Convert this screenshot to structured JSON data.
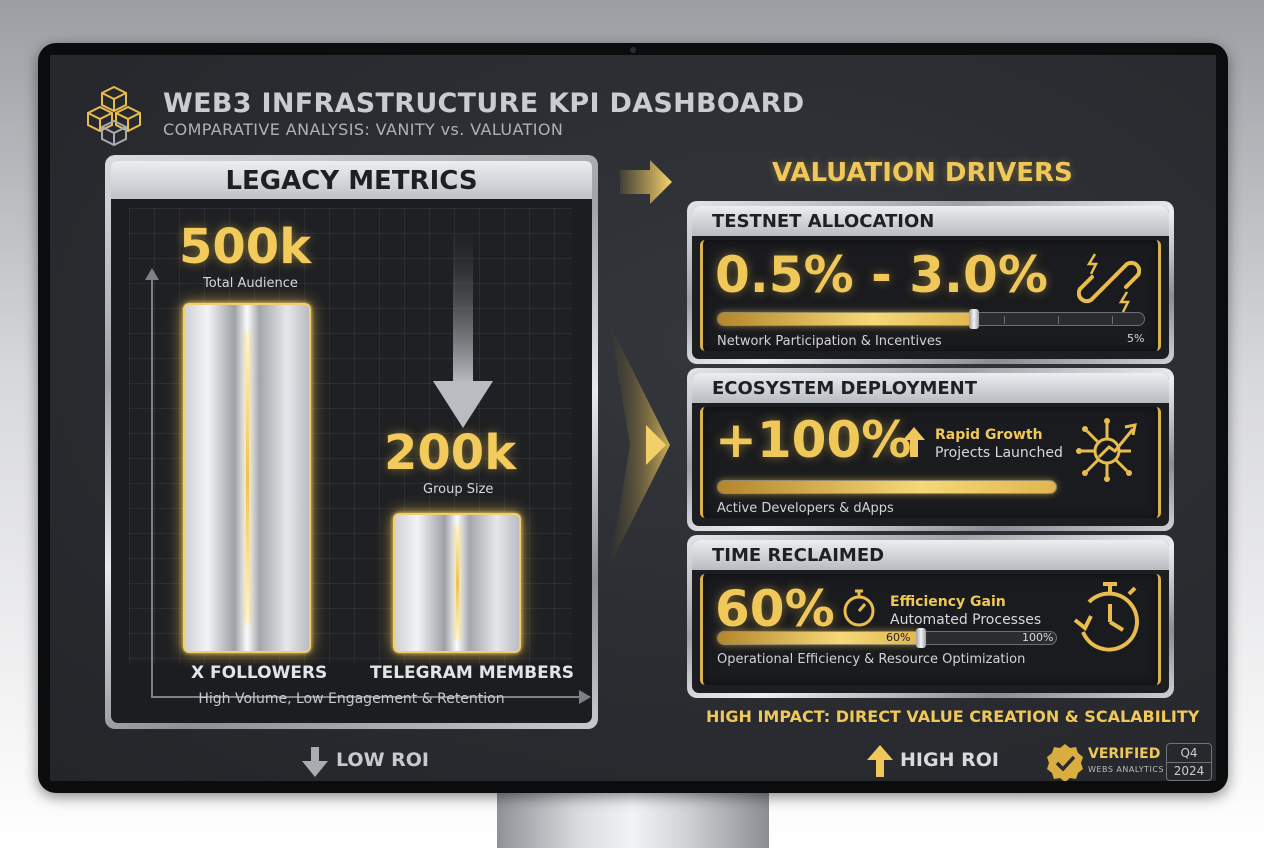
{
  "header": {
    "title": "WEB3 INFRASTRUCTURE KPI DASHBOARD",
    "subtitle": "COMPARATIVE ANALYSIS: VANITY vs. VALUATION",
    "logo_icon": "cubes-network-icon"
  },
  "legacy": {
    "title": "LEGACY METRICS",
    "bars": [
      {
        "value_label": "500k",
        "caption": "Total Audience",
        "category": "X FOLLOWERS",
        "value": 500000
      },
      {
        "value_label": "200k",
        "caption": "Group Size",
        "category": "TELEGRAM MEMBERS",
        "value": 200000
      }
    ],
    "footer": "High Volume, Low Engagement & Retention",
    "roi": "LOW ROI"
  },
  "valuation": {
    "title": "VALUATION DRIVERS",
    "cards": [
      {
        "heading": "TESTNET ALLOCATION",
        "value": "0.5% - 3.0%",
        "caption": "Network Participation & Incentives",
        "scale_max_label": "5%",
        "progress": 0.6,
        "icon": "broken-chain-icon"
      },
      {
        "heading": "ECOSYSTEM DEPLOYMENT",
        "value": "+100%",
        "growth_label": "Rapid Growth",
        "growth_sub": "Projects Launched",
        "caption": "Active Developers & dApps",
        "progress": 1.0,
        "icon": "network-growth-icon"
      },
      {
        "heading": "TIME RECLAIMED",
        "value": "60%",
        "gain_label": "Efficiency Gain",
        "gain_sub": "Automated Processes",
        "caption": "Operational Efficiency & Resource Optimization",
        "progress_label": "60%",
        "max_label": "100%",
        "progress": 0.6,
        "icon": "stopwatch-icon"
      }
    ],
    "impact": "HIGH IMPACT: DIRECT VALUE CREATION & SCALABILITY",
    "roi": "HIGH ROI"
  },
  "badge": {
    "label": "VERIFIED",
    "sub": "WEBS ANALYTICS",
    "quarter": "Q4",
    "year": "2024"
  },
  "colors": {
    "gold": "#f0c85a",
    "screen_bg": "#2a2c31",
    "silver": "#d9dbdf"
  }
}
